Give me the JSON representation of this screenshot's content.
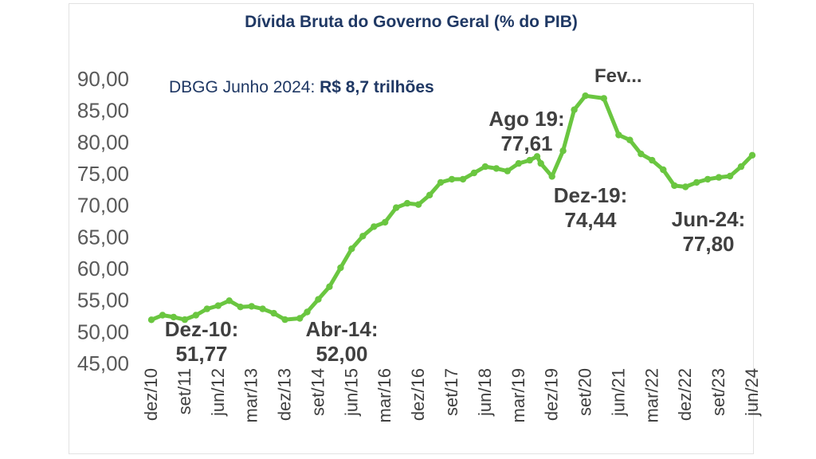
{
  "chart_data": {
    "type": "line",
    "title": "Dívida Bruta do Governo Geral (% do PIB)",
    "subtitle_prefix": "DBGG Junho 2024: ",
    "subtitle_value": "R$ 8,7 trilhões",
    "xlabel": "",
    "ylabel": "",
    "ylim": [
      45,
      90
    ],
    "yticks": [
      "45,00",
      "50,00",
      "55,00",
      "60,00",
      "65,00",
      "70,00",
      "75,00",
      "80,00",
      "85,00",
      "90,00"
    ],
    "xtick_labels": [
      "dez/10",
      "set/11",
      "jun/12",
      "mar/13",
      "dez/13",
      "set/14",
      "jun/15",
      "mar/16",
      "dez/16",
      "set/17",
      "jun/18",
      "mar/19",
      "dez/19",
      "set/20",
      "jun/21",
      "mar/22",
      "dez/22",
      "set/23",
      "jun/24"
    ],
    "grid": false,
    "legend": "none",
    "series": [
      {
        "color": "#6ac640",
        "x": [
          "dez/10",
          "mar/11",
          "jun/11",
          "set/11",
          "dez/11",
          "mar/12",
          "jun/12",
          "set/12",
          "dez/12",
          "mar/13",
          "jun/13",
          "set/13",
          "dez/13",
          "abr/14",
          "jun/14",
          "set/14",
          "dez/14",
          "mar/15",
          "jun/15",
          "set/15",
          "dez/15",
          "mar/16",
          "jun/16",
          "set/16",
          "dez/16",
          "mar/17",
          "jun/17",
          "set/17",
          "dez/17",
          "mar/18",
          "jun/18",
          "set/18",
          "dez/18",
          "mar/19",
          "jun/19",
          "ago/19",
          "set/19",
          "dez/19",
          "mar/20",
          "jun/20",
          "set/20",
          "fev/21",
          "jun/21",
          "set/21",
          "dez/21",
          "mar/22",
          "jun/22",
          "set/22",
          "dez/22",
          "mar/23",
          "jun/23",
          "set/23",
          "dez/23",
          "mar/24",
          "jun/24"
        ],
        "values": [
          51.77,
          52.5,
          52.2,
          51.8,
          52.5,
          53.5,
          54.0,
          54.8,
          53.8,
          53.9,
          53.5,
          52.8,
          51.8,
          52.0,
          53.0,
          55.0,
          57.0,
          60.0,
          63.0,
          65.0,
          66.5,
          67.2,
          69.5,
          70.2,
          70.0,
          71.5,
          73.5,
          74.0,
          74.0,
          75.0,
          76.0,
          75.7,
          75.3,
          76.5,
          77.0,
          77.61,
          76.5,
          74.44,
          78.5,
          85.0,
          87.2,
          86.8,
          81.0,
          80.2,
          78.0,
          77.0,
          75.5,
          73.0,
          72.8,
          73.5,
          74.0,
          74.3,
          74.5,
          76.0,
          77.8
        ]
      }
    ],
    "annotations": [
      {
        "line1": "Dez-10:",
        "line2": "51,77"
      },
      {
        "line1": "Abr-14:",
        "line2": "52,00"
      },
      {
        "line1": "Ago 19:",
        "line2": "77,61"
      },
      {
        "line1": "Fev...",
        "line2": ""
      },
      {
        "line1": "Dez-19:",
        "line2": "74,44"
      },
      {
        "line1": "Jun-24:",
        "line2": "77,80"
      }
    ]
  }
}
